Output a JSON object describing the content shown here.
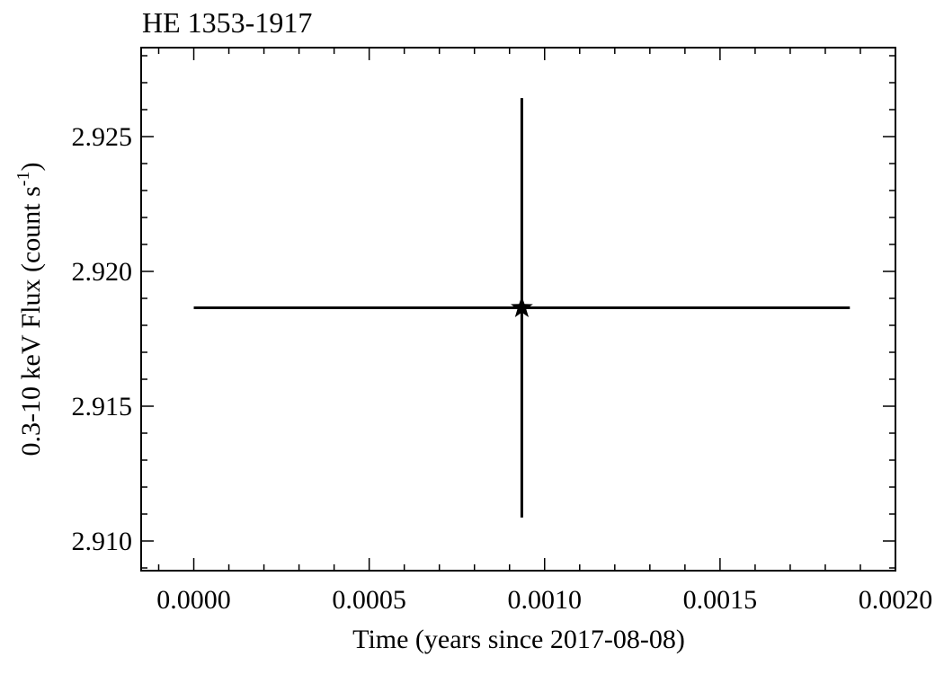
{
  "chart_data": {
    "type": "scatter",
    "title": "HE 1353-1917",
    "xlabel": "Time (years since 2017-08-08)",
    "ylabel_main": "0.3-10 keV Flux (count s",
    "ylabel_sup": "-1",
    "ylabel_close": ")",
    "xlim": [
      -0.00015,
      0.002
    ],
    "ylim": [
      2.9089,
      2.9283
    ],
    "x_major_ticks": [
      0.0,
      0.0005,
      0.001,
      0.0015,
      0.002
    ],
    "x_tick_labels": [
      "0.0000",
      "0.0005",
      "0.0010",
      "0.0015",
      "0.0020"
    ],
    "x_minor_step": 0.0001,
    "y_major_ticks": [
      2.91,
      2.915,
      2.92,
      2.925
    ],
    "y_tick_labels": [
      "2.910",
      "2.915",
      "2.920",
      "2.925"
    ],
    "y_minor_step": 0.001,
    "grid": false,
    "marker": "star",
    "color": "#000000",
    "points": [
      {
        "x": 0.000935,
        "y": 2.91865,
        "xerr_low": 0.000935,
        "xerr_high": 0.000935,
        "yerr_low": 0.00778,
        "yerr_high": 0.00778
      }
    ]
  }
}
